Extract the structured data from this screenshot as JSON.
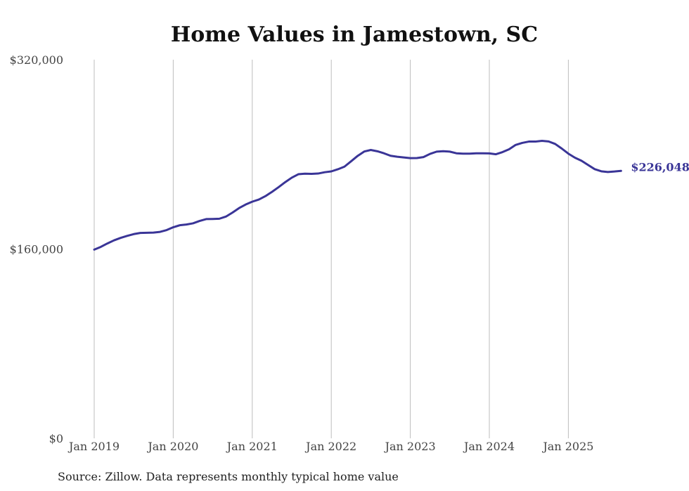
{
  "chart_data": {
    "type": "line",
    "title": "Home Values in Jamestown, SC",
    "source": "Source: Zillow. Data represents monthly typical home value",
    "ylim": [
      0,
      320000
    ],
    "y_ticks": [
      {
        "value": 0,
        "label": "$0"
      },
      {
        "value": 160000,
        "label": "$160,000"
      },
      {
        "value": 320000,
        "label": "$320,000"
      }
    ],
    "x_ticks": [
      {
        "value": 2019,
        "label": "Jan 2019"
      },
      {
        "value": 2020,
        "label": "Jan 2020"
      },
      {
        "value": 2021,
        "label": "Jan 2021"
      },
      {
        "value": 2022,
        "label": "Jan 2022"
      },
      {
        "value": 2023,
        "label": "Jan 2023"
      },
      {
        "value": 2024,
        "label": "Jan 2024"
      },
      {
        "value": 2025,
        "label": "Jan 2025"
      }
    ],
    "grid": "vertical",
    "line_color": "#3a3597",
    "end_label": "$226,048",
    "series": [
      {
        "x_start": "2019-01",
        "frequency": "monthly",
        "values": [
          159500,
          161800,
          164700,
          167300,
          169400,
          171100,
          172600,
          173600,
          173700,
          173900,
          174500,
          176000,
          178400,
          180100,
          180700,
          181700,
          183700,
          185300,
          185400,
          185600,
          187400,
          190800,
          194600,
          197600,
          200000,
          201800,
          204700,
          208300,
          212300,
          216500,
          220300,
          223200,
          223700,
          223500,
          223800,
          224900,
          225600,
          227400,
          229600,
          234100,
          238700,
          242400,
          243700,
          242600,
          240900,
          238800,
          238000,
          237400,
          236800,
          236900,
          237700,
          240400,
          242300,
          242700,
          242300,
          240900,
          240600,
          240600,
          240900,
          240900,
          240800,
          240100,
          241900,
          244300,
          248000,
          249700,
          250800,
          250800,
          251400,
          250900,
          248800,
          244900,
          240600,
          237200,
          234600,
          231000,
          227500,
          225700,
          225100,
          225500,
          226048
        ]
      }
    ]
  }
}
